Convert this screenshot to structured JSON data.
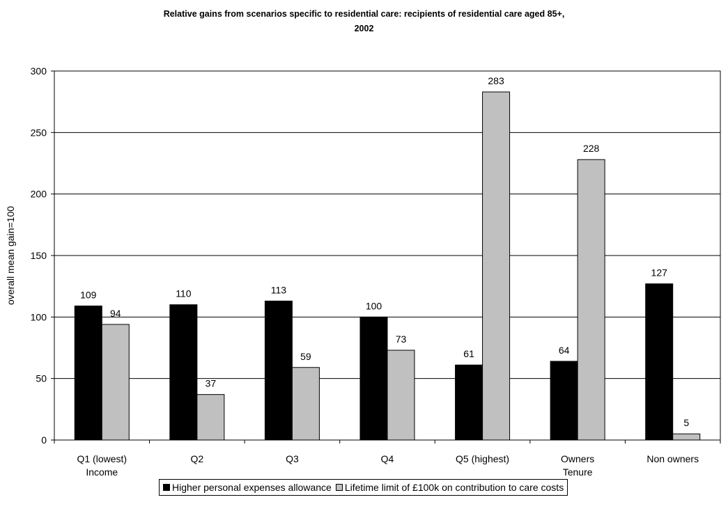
{
  "chart_data": {
    "type": "bar",
    "title_line1": "Relative gains from scenarios specific to residential care: recipients of residential care aged 85+,",
    "title_line2": "2002",
    "ylabel": "overall mean gain=100",
    "ylim": [
      0,
      300
    ],
    "yticks": [
      0,
      50,
      100,
      150,
      200,
      250,
      300
    ],
    "grid": true,
    "legend_position": "bottom",
    "categories": [
      "Q1 (lowest)",
      "Q2",
      "Q3",
      "Q4",
      "Q5 (highest)",
      "Owners",
      "Non owners"
    ],
    "group_labels": [
      {
        "label": "Income",
        "under": "Q1 (lowest)"
      },
      {
        "label": "Tenure",
        "under": "Owners"
      }
    ],
    "series": [
      {
        "name": "Higher personal expenses allowance",
        "color": "#000000",
        "values": [
          109,
          110,
          113,
          100,
          61,
          64,
          127
        ]
      },
      {
        "name": "Lifetime limit of £100k on contribution to care costs",
        "color": "#c0c0c0",
        "values": [
          94,
          37,
          59,
          73,
          283,
          228,
          5
        ]
      }
    ]
  }
}
